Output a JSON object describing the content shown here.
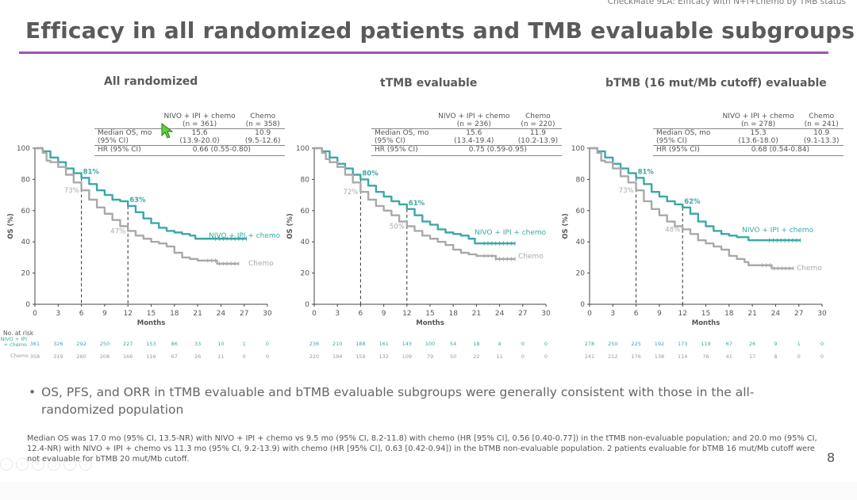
{
  "header_tag": "CheckMate 9LA: Efficacy with N+I+chemo by TMB status",
  "title": "Efficacy in all randomized patients and TMB evaluable subgroups",
  "colors": {
    "nivo": "#3aa8a6",
    "chemo": "#a9a9a9",
    "accent_rule": "#a055b0"
  },
  "table_labels": {
    "col_arm1": "NIVO + IPI + chemo",
    "col_arm2": "Chemo",
    "median_os": "Median OS, mo",
    "ci": "(95% CI)",
    "hr": "HR (95% CI)"
  },
  "risk_table_labels": {
    "header": "No. at risk",
    "arm1": "NIVO + IPI + chemo",
    "arm2": "Chemo"
  },
  "chart_data": [
    {
      "type": "line",
      "title": "All randomized",
      "xlabel": "Months",
      "ylabel": "OS (%)",
      "xlim": [
        0,
        30
      ],
      "ylim": [
        0,
        100
      ],
      "xticks": [
        0,
        3,
        6,
        9,
        12,
        15,
        18,
        21,
        24,
        27,
        30
      ],
      "yticks": [
        0,
        20,
        40,
        60,
        80,
        100
      ],
      "grid": false,
      "summary": {
        "n_arm1": "(n = 361)",
        "n_arm2": "(n = 358)",
        "median_arm1": "15.6",
        "ci_arm1": "(13.9-20.0)",
        "median_arm2": "10.9",
        "ci_arm2": "(9.5-12.6)",
        "hr": "0.66 (0.55-0.80)"
      },
      "landmarks": [
        {
          "month": 6,
          "nivo": 81,
          "chemo": 73,
          "nivo_label": "81%",
          "chemo_label": "73%"
        },
        {
          "month": 12,
          "nivo": 63,
          "chemo": 47,
          "nivo_label": "63%",
          "chemo_label": "47%"
        }
      ],
      "series": [
        {
          "name": "NIVO + IPI + chemo",
          "label": "NIVO + IPI + chemo",
          "x": [
            0,
            1,
            2,
            3,
            4,
            5,
            6,
            7,
            8,
            9,
            10,
            11,
            12,
            13,
            14,
            15,
            16,
            17,
            18,
            19,
            20,
            20.7,
            22,
            24,
            26,
            27.3
          ],
          "y": [
            100,
            98,
            94,
            91,
            87,
            84,
            81,
            77,
            73,
            70,
            67,
            66,
            63,
            59,
            55,
            52,
            49,
            47,
            46,
            45,
            44,
            42,
            42,
            42,
            42,
            42
          ]
        },
        {
          "name": "Chemo",
          "label": "Chemo",
          "x": [
            0,
            1,
            1.5,
            2,
            3,
            4,
            5,
            6,
            7,
            8,
            9,
            10,
            11,
            12,
            13,
            14,
            15,
            16,
            17,
            18,
            19,
            20,
            21,
            22,
            23,
            23.5,
            25,
            26.3
          ],
          "y": [
            100,
            97,
            92,
            91,
            88,
            83,
            78,
            73,
            67,
            62,
            58,
            54,
            50,
            47,
            44,
            42,
            40,
            39,
            37,
            33,
            30,
            29,
            28,
            28,
            28,
            26,
            26,
            26
          ]
        }
      ],
      "at_risk": {
        "arm1": [
          361,
          326,
          292,
          250,
          227,
          153,
          86,
          33,
          10,
          1,
          0
        ],
        "arm2": [
          358,
          319,
          260,
          208,
          166,
          116,
          67,
          26,
          11,
          0,
          0
        ]
      }
    },
    {
      "type": "line",
      "title": "tTMB evaluable",
      "xlabel": "Months",
      "ylabel": "OS (%)",
      "xlim": [
        0,
        30
      ],
      "ylim": [
        0,
        100
      ],
      "xticks": [
        0,
        3,
        6,
        9,
        12,
        15,
        18,
        21,
        24,
        27,
        30
      ],
      "yticks": [
        0,
        20,
        40,
        60,
        80,
        100
      ],
      "grid": false,
      "summary": {
        "n_arm1": "(n = 236)",
        "n_arm2": "(n = 220)",
        "median_arm1": "15.6",
        "ci_arm1": "(13.4-19.4)",
        "median_arm2": "11.9",
        "ci_arm2": "(10.2-13.9)",
        "hr": "0.75 (0.59-0.95)"
      },
      "landmarks": [
        {
          "month": 6,
          "nivo": 80,
          "chemo": 72,
          "nivo_label": "80%",
          "chemo_label": "72%"
        },
        {
          "month": 12,
          "nivo": 61,
          "chemo": 50,
          "nivo_label": "61%",
          "chemo_label": "50%"
        }
      ],
      "series": [
        {
          "name": "NIVO + IPI + chemo",
          "label": "NIVO + IPI + chemo",
          "x": [
            0,
            1,
            2,
            3,
            4,
            5,
            6,
            7,
            8,
            9,
            10,
            11,
            12,
            13,
            14,
            15,
            16,
            17,
            18,
            19,
            20,
            20.8,
            22,
            24,
            26
          ],
          "y": [
            100,
            98,
            94,
            90,
            87,
            83,
            80,
            76,
            72,
            69,
            66,
            64,
            61,
            57,
            53,
            51,
            48,
            46,
            45,
            44,
            42,
            39,
            39,
            39,
            39
          ]
        },
        {
          "name": "Chemo",
          "label": "Chemo",
          "x": [
            0,
            1,
            1.5,
            2,
            3,
            4,
            5,
            6,
            7,
            8,
            9,
            10,
            11,
            12,
            13,
            14,
            15,
            16,
            17,
            18,
            19,
            20,
            21,
            22,
            23,
            23.5,
            25,
            26
          ],
          "y": [
            100,
            97,
            93,
            91,
            88,
            83,
            78,
            72,
            67,
            63,
            60,
            57,
            53,
            50,
            47,
            44,
            42,
            40,
            38,
            35,
            33,
            32,
            31,
            31,
            31,
            29,
            29,
            29
          ]
        }
      ],
      "at_risk": {
        "arm1": [
          236,
          210,
          188,
          161,
          143,
          100,
          54,
          18,
          4,
          0,
          0
        ],
        "arm2": [
          220,
          194,
          159,
          132,
          109,
          79,
          50,
          22,
          11,
          0,
          0
        ]
      }
    },
    {
      "type": "line",
      "title": "bTMB (16 mut/Mb cutoff) evaluable",
      "xlabel": "Months",
      "ylabel": "OS (%)",
      "xlim": [
        0,
        30
      ],
      "ylim": [
        0,
        100
      ],
      "xticks": [
        0,
        3,
        6,
        9,
        12,
        15,
        18,
        21,
        24,
        27,
        30
      ],
      "yticks": [
        0,
        20,
        40,
        60,
        80,
        100
      ],
      "grid": false,
      "summary": {
        "n_arm1": "(n = 278)",
        "n_arm2": "(n = 241)",
        "median_arm1": "15.3",
        "ci_arm1": "(13.6-18.0)",
        "median_arm2": "10.9",
        "ci_arm2": "(9.1-13.3)",
        "hr": "0.68 (0.54-0.84)"
      },
      "landmarks": [
        {
          "month": 6,
          "nivo": 81,
          "chemo": 73,
          "nivo_label": "81%",
          "chemo_label": "73%"
        },
        {
          "month": 12,
          "nivo": 62,
          "chemo": 48,
          "nivo_label": "62%",
          "chemo_label": "48%"
        }
      ],
      "series": [
        {
          "name": "NIVO + IPI + chemo",
          "label": "NIVO + IPI + chemo",
          "x": [
            0,
            1,
            2,
            3,
            4,
            5,
            6,
            7,
            8,
            9,
            10,
            11,
            12,
            13,
            14,
            15,
            16,
            17,
            18,
            19,
            19.5,
            20.5,
            22,
            24,
            26,
            27.2
          ],
          "y": [
            100,
            98,
            94,
            90,
            87,
            84,
            81,
            77,
            72,
            69,
            66,
            64,
            62,
            58,
            53,
            50,
            47,
            45,
            44,
            43,
            43,
            41,
            41,
            41,
            41,
            41
          ]
        },
        {
          "name": "Chemo",
          "label": "Chemo",
          "x": [
            0,
            1,
            1.5,
            2,
            3,
            4,
            5,
            6,
            7,
            8,
            9,
            10,
            11,
            12,
            13,
            14,
            15,
            16,
            17,
            18,
            19,
            20,
            20.5,
            22,
            23,
            23.5,
            25,
            26.3
          ],
          "y": [
            100,
            97,
            92,
            91,
            87,
            82,
            78,
            73,
            66,
            61,
            57,
            53,
            50,
            48,
            45,
            41,
            39,
            37,
            35,
            31,
            29,
            27,
            25,
            25,
            25,
            23,
            23,
            23
          ]
        }
      ],
      "at_risk": {
        "arm1": [
          278,
          250,
          225,
          192,
          173,
          119,
          67,
          26,
          9,
          1,
          0
        ],
        "arm2": [
          241,
          212,
          176,
          138,
          114,
          76,
          41,
          17,
          8,
          0,
          0
        ]
      }
    }
  ],
  "bullet": "OS, PFS, and ORR in tTMB evaluable and bTMB evaluable subgroups were generally consistent with those in the all-randomized population",
  "footnote": "Median OS was 17.0 mo (95% CI, 13.5-NR) with NIVO + IPI + chemo vs 9.5 mo (95% CI, 8.2-11.8) with chemo (HR [95% CI], 0.56 [0.40-0.77]) in the tTMB non-evaluable population; and 20.0 mo (95% CI, 12.4-NR) with NIVO + IPI + chemo vs 11.3 mo (95% CI, 9.2-13.9) with chemo (HR [95% CI], 0.63 [0.42-0.94]) in the bTMB non-evaluable population. 2 patients evaluable for bTMB 16 mut/Mb cutoff were not evaluable for bTMB 20 mut/Mb cutoff.",
  "page_number": "8",
  "viewer_controls": [
    "prev-icon",
    "info-icon",
    "edit-icon",
    "copy-icon",
    "zoom-icon",
    "minus-icon"
  ]
}
